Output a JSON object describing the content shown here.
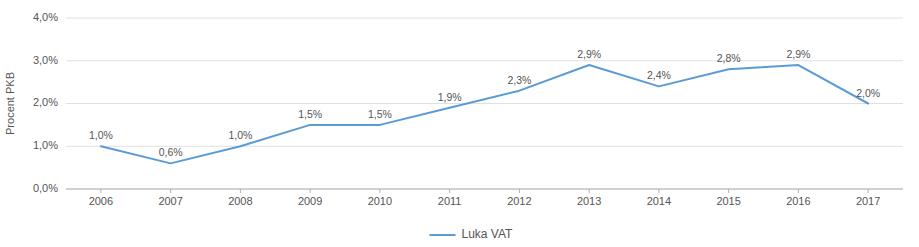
{
  "chart_data": {
    "type": "line",
    "ylabel": "Procent PKB",
    "x": [
      2006,
      2007,
      2008,
      2009,
      2010,
      2011,
      2012,
      2013,
      2014,
      2015,
      2016,
      2017
    ],
    "series": [
      {
        "name": "Luka VAT",
        "color": "#5B9BD5",
        "marker": "none",
        "values": [
          1.0,
          0.6,
          1.0,
          1.5,
          1.5,
          1.9,
          2.3,
          2.9,
          2.4,
          2.8,
          2.9,
          2.0
        ],
        "value_labels": [
          "1,0%",
          "0,6%",
          "1,0%",
          "1,5%",
          "1,5%",
          "1,9%",
          "2,3%",
          "2,9%",
          "2,4%",
          "2,8%",
          "2,9%",
          "2,0%"
        ]
      }
    ],
    "xlim": [
      2005.5,
      2017.5
    ],
    "xticks": [
      2006,
      2007,
      2008,
      2009,
      2010,
      2011,
      2012,
      2013,
      2014,
      2015,
      2016,
      2017
    ],
    "ylim": [
      0.0,
      4.0
    ],
    "yticks": [
      {
        "value": 0.0,
        "label": "0,0%"
      },
      {
        "value": 1.0,
        "label": "1,0%"
      },
      {
        "value": 2.0,
        "label": "2,0%"
      },
      {
        "value": 3.0,
        "label": "3,0%"
      },
      {
        "value": 4.0,
        "label": "4,0%"
      }
    ],
    "grid": true,
    "data_labels": true,
    "legend": "bottom"
  }
}
